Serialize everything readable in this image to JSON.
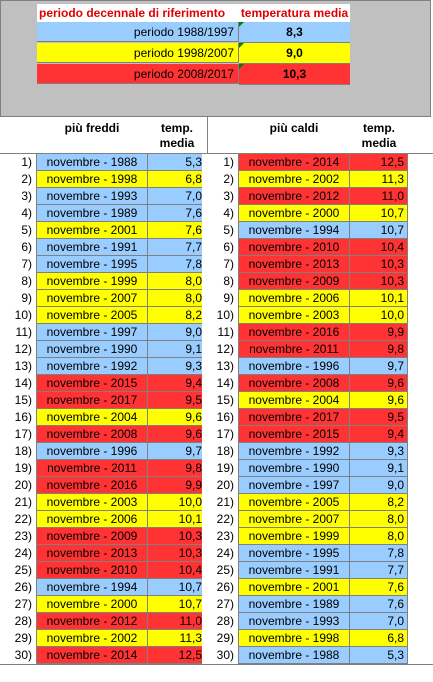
{
  "header": {
    "period_col": "periodo decennale di riferimento",
    "temp_col": "temperatura media"
  },
  "periods": [
    {
      "label": "periodo 1988/1997",
      "value": "8,3",
      "color": "#99ccff"
    },
    {
      "label": "periodo 1998/2007",
      "value": "9,0",
      "color": "#ffff00"
    },
    {
      "label": "periodo 2008/2017",
      "value": "10,3",
      "color": "#ff3333"
    }
  ],
  "cold": {
    "title": "più freddi",
    "temp_title_1": "temp.",
    "temp_title_2": "media",
    "rows": [
      {
        "rank": "1)",
        "month": "novembre - 1988",
        "temp": "5,3",
        "color": "blue"
      },
      {
        "rank": "2)",
        "month": "novembre - 1998",
        "temp": "6,8",
        "color": "yellow"
      },
      {
        "rank": "3)",
        "month": "novembre - 1993",
        "temp": "7,0",
        "color": "blue"
      },
      {
        "rank": "4)",
        "month": "novembre - 1989",
        "temp": "7,6",
        "color": "blue"
      },
      {
        "rank": "5)",
        "month": "novembre - 2001",
        "temp": "7,6",
        "color": "yellow"
      },
      {
        "rank": "6)",
        "month": "novembre - 1991",
        "temp": "7,7",
        "color": "blue"
      },
      {
        "rank": "7)",
        "month": "novembre - 1995",
        "temp": "7,8",
        "color": "blue"
      },
      {
        "rank": "8)",
        "month": "novembre - 1999",
        "temp": "8,0",
        "color": "yellow"
      },
      {
        "rank": "9)",
        "month": "novembre - 2007",
        "temp": "8,0",
        "color": "yellow"
      },
      {
        "rank": "10)",
        "month": "novembre - 2005",
        "temp": "8,2",
        "color": "yellow"
      },
      {
        "rank": "11)",
        "month": "novembre - 1997",
        "temp": "9,0",
        "color": "blue"
      },
      {
        "rank": "12)",
        "month": "novembre - 1990",
        "temp": "9,1",
        "color": "blue"
      },
      {
        "rank": "13)",
        "month": "novembre - 1992",
        "temp": "9,3",
        "color": "blue"
      },
      {
        "rank": "14)",
        "month": "novembre - 2015",
        "temp": "9,4",
        "color": "red"
      },
      {
        "rank": "15)",
        "month": "novembre - 2017",
        "temp": "9,5",
        "color": "red"
      },
      {
        "rank": "16)",
        "month": "novembre - 2004",
        "temp": "9,6",
        "color": "yellow"
      },
      {
        "rank": "17)",
        "month": "novembre - 2008",
        "temp": "9,6",
        "color": "red"
      },
      {
        "rank": "18)",
        "month": "novembre - 1996",
        "temp": "9,7",
        "color": "blue"
      },
      {
        "rank": "19)",
        "month": "novembre - 2011",
        "temp": "9,8",
        "color": "red"
      },
      {
        "rank": "20)",
        "month": "novembre - 2016",
        "temp": "9,9",
        "color": "red"
      },
      {
        "rank": "21)",
        "month": "novembre - 2003",
        "temp": "10,0",
        "color": "yellow"
      },
      {
        "rank": "22)",
        "month": "novembre - 2006",
        "temp": "10,1",
        "color": "yellow"
      },
      {
        "rank": "23)",
        "month": "novembre - 2009",
        "temp": "10,3",
        "color": "red"
      },
      {
        "rank": "24)",
        "month": "novembre - 2013",
        "temp": "10,3",
        "color": "red"
      },
      {
        "rank": "25)",
        "month": "novembre - 2010",
        "temp": "10,4",
        "color": "red"
      },
      {
        "rank": "26)",
        "month": "novembre - 1994",
        "temp": "10,7",
        "color": "blue"
      },
      {
        "rank": "27)",
        "month": "novembre - 2000",
        "temp": "10,7",
        "color": "yellow"
      },
      {
        "rank": "28)",
        "month": "novembre - 2012",
        "temp": "11,0",
        "color": "red"
      },
      {
        "rank": "29)",
        "month": "novembre - 2002",
        "temp": "11,3",
        "color": "yellow"
      },
      {
        "rank": "30)",
        "month": "novembre - 2014",
        "temp": "12,5",
        "color": "red"
      }
    ]
  },
  "hot": {
    "title": "più caldi",
    "temp_title_1": "temp.",
    "temp_title_2": "media",
    "rows": [
      {
        "rank": "1)",
        "month": "novembre - 2014",
        "temp": "12,5",
        "color": "red"
      },
      {
        "rank": "2)",
        "month": "novembre - 2002",
        "temp": "11,3",
        "color": "yellow"
      },
      {
        "rank": "3)",
        "month": "novembre - 2012",
        "temp": "11,0",
        "color": "red"
      },
      {
        "rank": "4)",
        "month": "novembre - 2000",
        "temp": "10,7",
        "color": "yellow"
      },
      {
        "rank": "5)",
        "month": "novembre - 1994",
        "temp": "10,7",
        "color": "blue"
      },
      {
        "rank": "6)",
        "month": "novembre - 2010",
        "temp": "10,4",
        "color": "red"
      },
      {
        "rank": "7)",
        "month": "novembre - 2013",
        "temp": "10,3",
        "color": "red"
      },
      {
        "rank": "8)",
        "month": "novembre - 2009",
        "temp": "10,3",
        "color": "red"
      },
      {
        "rank": "9)",
        "month": "novembre - 2006",
        "temp": "10,1",
        "color": "yellow"
      },
      {
        "rank": "10)",
        "month": "novembre - 2003",
        "temp": "10,0",
        "color": "yellow"
      },
      {
        "rank": "11)",
        "month": "novembre - 2016",
        "temp": "9,9",
        "color": "red"
      },
      {
        "rank": "12)",
        "month": "novembre - 2011",
        "temp": "9,8",
        "color": "red"
      },
      {
        "rank": "13)",
        "month": "novembre - 1996",
        "temp": "9,7",
        "color": "blue"
      },
      {
        "rank": "14)",
        "month": "novembre - 2008",
        "temp": "9,6",
        "color": "red"
      },
      {
        "rank": "15)",
        "month": "novembre - 2004",
        "temp": "9,6",
        "color": "yellow"
      },
      {
        "rank": "16)",
        "month": "novembre - 2017",
        "temp": "9,5",
        "color": "red"
      },
      {
        "rank": "17)",
        "month": "novembre - 2015",
        "temp": "9,4",
        "color": "red"
      },
      {
        "rank": "18)",
        "month": "novembre - 1992",
        "temp": "9,3",
        "color": "blue"
      },
      {
        "rank": "19)",
        "month": "novembre - 1990",
        "temp": "9,1",
        "color": "blue"
      },
      {
        "rank": "20)",
        "month": "novembre - 1997",
        "temp": "9,0",
        "color": "blue"
      },
      {
        "rank": "21)",
        "month": "novembre - 2005",
        "temp": "8,2",
        "color": "yellow"
      },
      {
        "rank": "22)",
        "month": "novembre - 2007",
        "temp": "8,0",
        "color": "yellow"
      },
      {
        "rank": "23)",
        "month": "novembre - 1999",
        "temp": "8,0",
        "color": "yellow"
      },
      {
        "rank": "24)",
        "month": "novembre - 1995",
        "temp": "7,8",
        "color": "blue"
      },
      {
        "rank": "25)",
        "month": "novembre - 1991",
        "temp": "7,7",
        "color": "blue"
      },
      {
        "rank": "26)",
        "month": "novembre - 2001",
        "temp": "7,6",
        "color": "yellow"
      },
      {
        "rank": "27)",
        "month": "novembre - 1989",
        "temp": "7,6",
        "color": "blue"
      },
      {
        "rank": "28)",
        "month": "novembre - 1993",
        "temp": "7,0",
        "color": "blue"
      },
      {
        "rank": "29)",
        "month": "novembre - 1998",
        "temp": "6,8",
        "color": "yellow"
      },
      {
        "rank": "30)",
        "month": "novembre - 1988",
        "temp": "5,3",
        "color": "blue"
      }
    ]
  }
}
